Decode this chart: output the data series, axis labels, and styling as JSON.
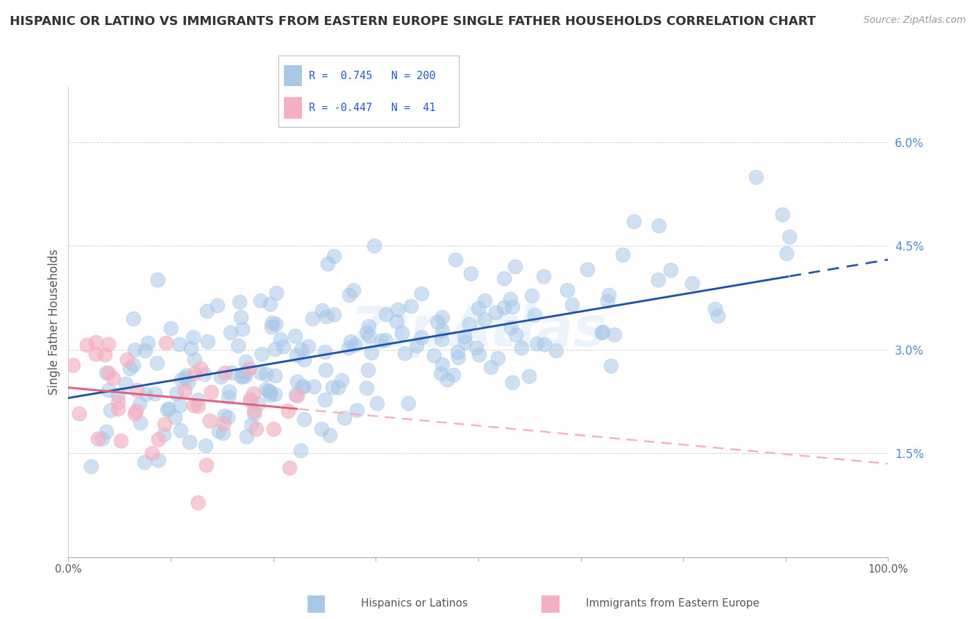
{
  "title": "HISPANIC OR LATINO VS IMMIGRANTS FROM EASTERN EUROPE SINGLE FATHER HOUSEHOLDS CORRELATION CHART",
  "source": "Source: ZipAtlas.com",
  "ylabel": "Single Father Households",
  "xmin": 0.0,
  "xmax": 1.0,
  "ymin": 0.0,
  "ymax": 0.068,
  "yticks": [
    0.015,
    0.03,
    0.045,
    0.06
  ],
  "ytick_labels": [
    "1.5%",
    "3.0%",
    "4.5%",
    "6.0%"
  ],
  "blue_R": 0.745,
  "blue_N": 200,
  "pink_R": -0.447,
  "pink_N": 41,
  "blue_color": "#a8c8e8",
  "pink_color": "#f4afc0",
  "blue_line_color": "#2255aa",
  "pink_line_color": "#e06080",
  "pink_dash_color": "#f4afc0",
  "legend_blue_label": "Hispanics or Latinos",
  "legend_pink_label": "Immigrants from Eastern Europe",
  "watermark": "ZipAtlas",
  "background_color": "#ffffff",
  "grid_color": "#cccccc",
  "title_color": "#333333",
  "title_fontsize": 13,
  "source_fontsize": 10,
  "seed": 42,
  "blue_intercept": 0.022,
  "blue_slope": 0.021,
  "blue_noise": 0.006,
  "pink_intercept": 0.024,
  "pink_slope": -0.012,
  "pink_noise": 0.005
}
